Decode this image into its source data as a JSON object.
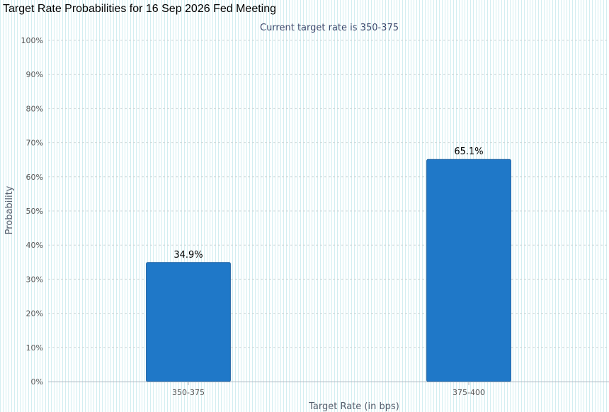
{
  "page": {
    "title": "Target Rate Probabilities for 16 Sep 2026 Fed Meeting"
  },
  "chart_data": {
    "type": "bar",
    "title": "Target Rate Probabilities for 16 Sep 2026 Fed Meeting",
    "subtitle": "Current target rate is 350-375",
    "xlabel": "Target Rate (in bps)",
    "ylabel": "Probability",
    "categories": [
      "350-375",
      "375-400"
    ],
    "values": [
      34.9,
      65.1
    ],
    "data_labels": [
      "34.9%",
      "65.1%"
    ],
    "ylim": [
      0,
      100
    ],
    "yticks": [
      0,
      10,
      20,
      30,
      40,
      50,
      60,
      70,
      80,
      90,
      100
    ],
    "ytick_labels": [
      "0%",
      "10%",
      "20%",
      "30%",
      "40%",
      "50%",
      "60%",
      "70%",
      "80%",
      "90%",
      "100%"
    ],
    "grid": true,
    "legend": "none",
    "colors": {
      "bar": "#1f78c8",
      "bar_edge": "#1a5fa0",
      "grid": "#c9d6d8",
      "axis": "#a8b3bd"
    }
  }
}
